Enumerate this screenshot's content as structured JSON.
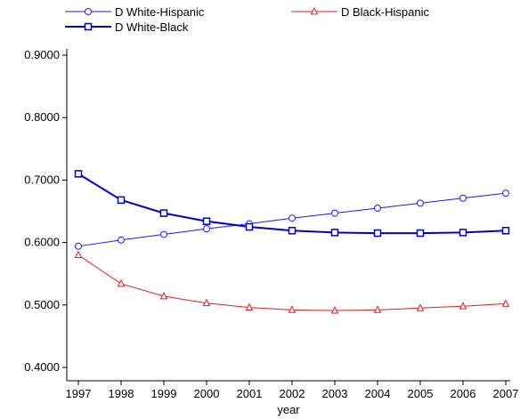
{
  "chart_data": {
    "type": "line",
    "xlabel": "year",
    "ylabel": "",
    "x": [
      1997,
      1998,
      1999,
      2000,
      2001,
      2002,
      2003,
      2004,
      2005,
      2006,
      2007
    ],
    "xticks": [
      "1997",
      "1998",
      "1999",
      "2000",
      "2001",
      "2002",
      "2003",
      "2004",
      "2005",
      "2006",
      "2007"
    ],
    "yticks": [
      "0.4000",
      "0.5000",
      "0.6000",
      "0.7000",
      "0.8000",
      "0.9000"
    ],
    "ylim": [
      0.4,
      0.9
    ],
    "xlim": [
      1997,
      2007
    ],
    "grid": false,
    "legend_position": "top",
    "series": [
      {
        "name": "D White-Hispanic",
        "color": "#1a1aff",
        "marker": "circle",
        "values": [
          0.594,
          0.604,
          0.613,
          0.622,
          0.63,
          0.639,
          0.647,
          0.655,
          0.663,
          0.671,
          0.679
        ]
      },
      {
        "name": "D Black-Hispanic",
        "color": "#e31a1c",
        "marker": "triangle",
        "values": [
          0.58,
          0.534,
          0.514,
          0.503,
          0.496,
          0.492,
          0.491,
          0.492,
          0.495,
          0.498,
          0.502
        ]
      },
      {
        "name": "D White-Black",
        "color": "#0000cc",
        "marker": "square",
        "values": [
          0.71,
          0.668,
          0.647,
          0.634,
          0.625,
          0.619,
          0.616,
          0.615,
          0.615,
          0.616,
          0.619
        ]
      }
    ]
  }
}
